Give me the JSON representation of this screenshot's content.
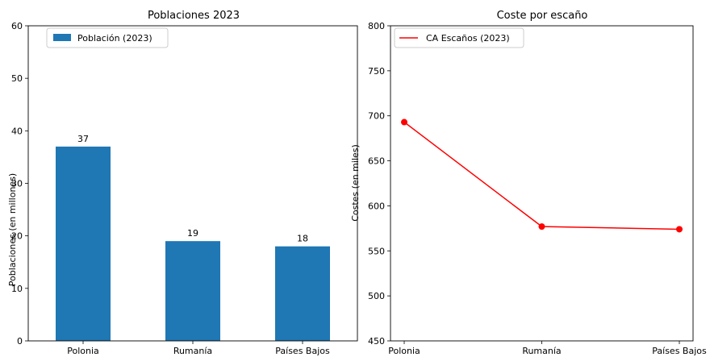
{
  "chart_data": [
    {
      "type": "bar",
      "title": "Poblaciones 2023",
      "xlabel": "",
      "ylabel": "Poblaciones (en millones)",
      "categories": [
        "Polonia",
        "Rumanía",
        "Países Bajos"
      ],
      "series": [
        {
          "name": "Población (2023)",
          "values": [
            37,
            19,
            18
          ],
          "color": "#1f77b4"
        }
      ],
      "data_labels": [
        "37",
        "19",
        "18"
      ],
      "ylim": [
        0,
        60
      ],
      "yticks": [
        0,
        10,
        20,
        30,
        40,
        50,
        60
      ],
      "grid": false,
      "legend": "top-left"
    },
    {
      "type": "line",
      "title": "Coste por escaño",
      "xlabel": "",
      "ylabel": "Costes (en miles)",
      "categories": [
        "Polonia",
        "Rumanía",
        "Países Bajos"
      ],
      "series": [
        {
          "name": "CA Escaños (2023)",
          "values": [
            693,
            577,
            574
          ],
          "color": "#ff0000",
          "marker": "circle"
        }
      ],
      "ylim": [
        450,
        800
      ],
      "yticks": [
        450,
        500,
        550,
        600,
        650,
        700,
        750,
        800
      ],
      "grid": false,
      "legend": "top-left"
    }
  ]
}
